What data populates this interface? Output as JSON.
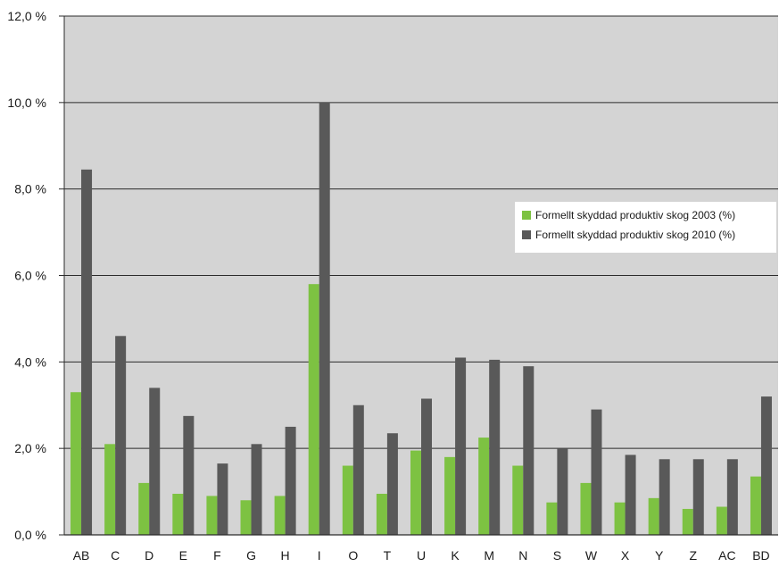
{
  "chart_data": {
    "type": "bar",
    "categories": [
      "AB",
      "C",
      "D",
      "E",
      "F",
      "G",
      "H",
      "I",
      "O",
      "T",
      "U",
      "K",
      "M",
      "N",
      "S",
      "W",
      "X",
      "Y",
      "Z",
      "AC",
      "BD"
    ],
    "series": [
      {
        "name": "Formellt skyddad produktiv skog 2003 (%)",
        "color": "#7dc242",
        "values": [
          3.3,
          2.1,
          1.2,
          0.95,
          0.9,
          0.8,
          0.9,
          5.8,
          1.6,
          0.95,
          1.95,
          1.8,
          2.25,
          1.6,
          0.75,
          1.2,
          0.75,
          0.85,
          0.6,
          0.65,
          1.35
        ]
      },
      {
        "name": "Formellt skyddad produktiv skog 2010 (%)",
        "color": "#595959",
        "values": [
          8.45,
          4.6,
          3.4,
          2.75,
          1.65,
          2.1,
          2.5,
          10.0,
          3.0,
          2.35,
          3.15,
          4.1,
          4.05,
          3.9,
          2.0,
          2.9,
          1.85,
          1.75,
          1.75,
          1.75,
          3.2
        ]
      }
    ],
    "y_ticks": [
      "0,0 %",
      "2,0 %",
      "4,0 %",
      "6,0 %",
      "8,0 %",
      "10,0 %",
      "12,0 %"
    ],
    "ylim": [
      0,
      12
    ],
    "title": "",
    "xlabel": "",
    "ylabel": "",
    "grid": true,
    "legend_position": "right-middle",
    "plot_background": "#d4d4d4"
  }
}
